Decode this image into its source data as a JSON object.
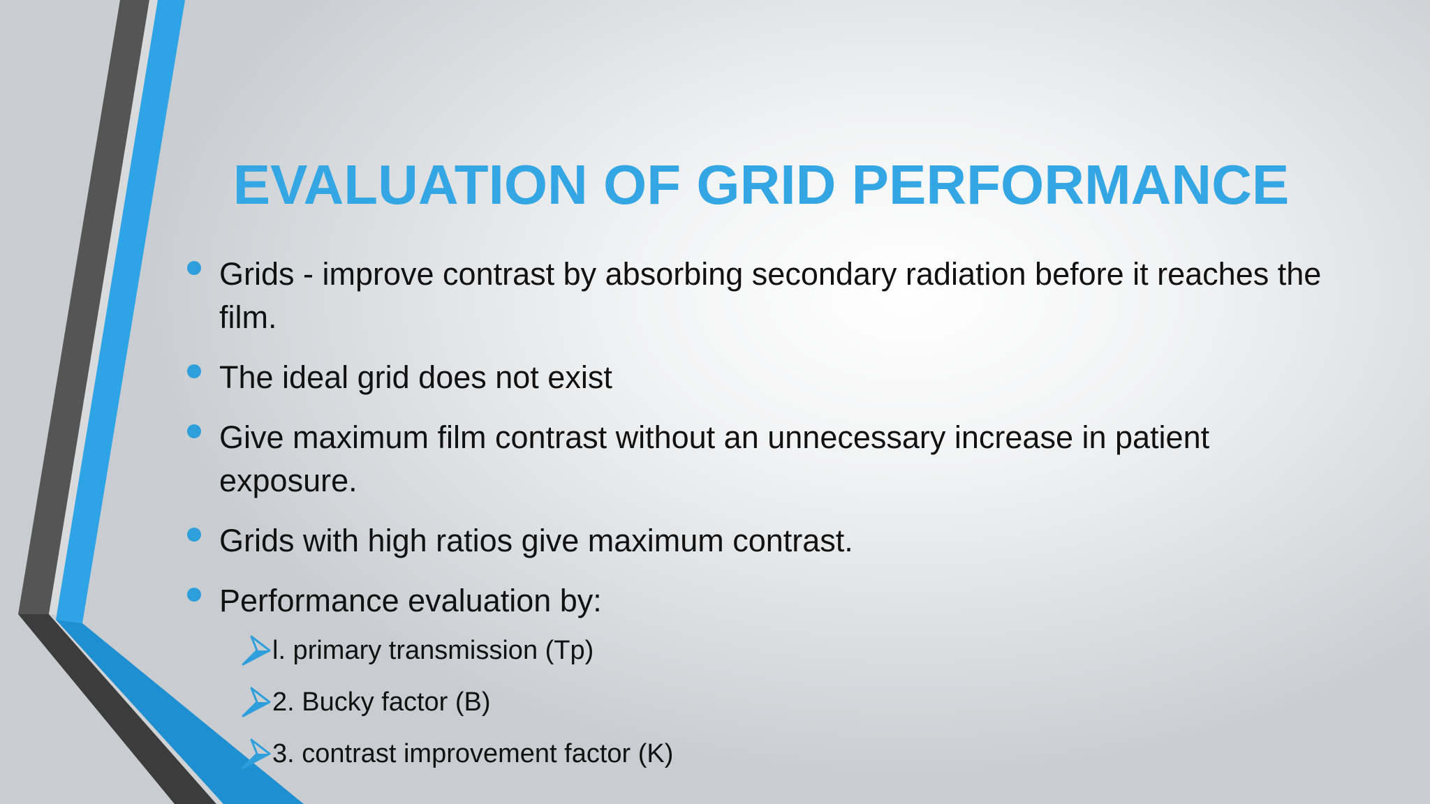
{
  "slide": {
    "title": "EVALUATION OF GRID PERFORMANCE",
    "bullets": [
      "Grids - improve contrast by absorbing secondary radiation before it reaches the film.",
      "The ideal grid does not exist",
      "Give maximum film contrast without an unnecessary increase in patient exposure.",
      "Grids with high ratios  give maximum contrast.",
      "Performance  evaluation by:"
    ],
    "sub_bullets": [
      "l. primary transmission (Tp)",
      "2. Bucky factor (B)",
      "3. contrast improvement factor (K)"
    ]
  },
  "colors": {
    "accent_blue": "#33a6e3",
    "bullet_blue": "#2f9fdc",
    "stripe_dark": "#4a4a4a",
    "stripe_blue": "#2ea3e6",
    "text": "#111111"
  },
  "icons": {
    "bullet": "filled-circle-icon",
    "sub_bullet": "arrow-chevron-icon"
  }
}
